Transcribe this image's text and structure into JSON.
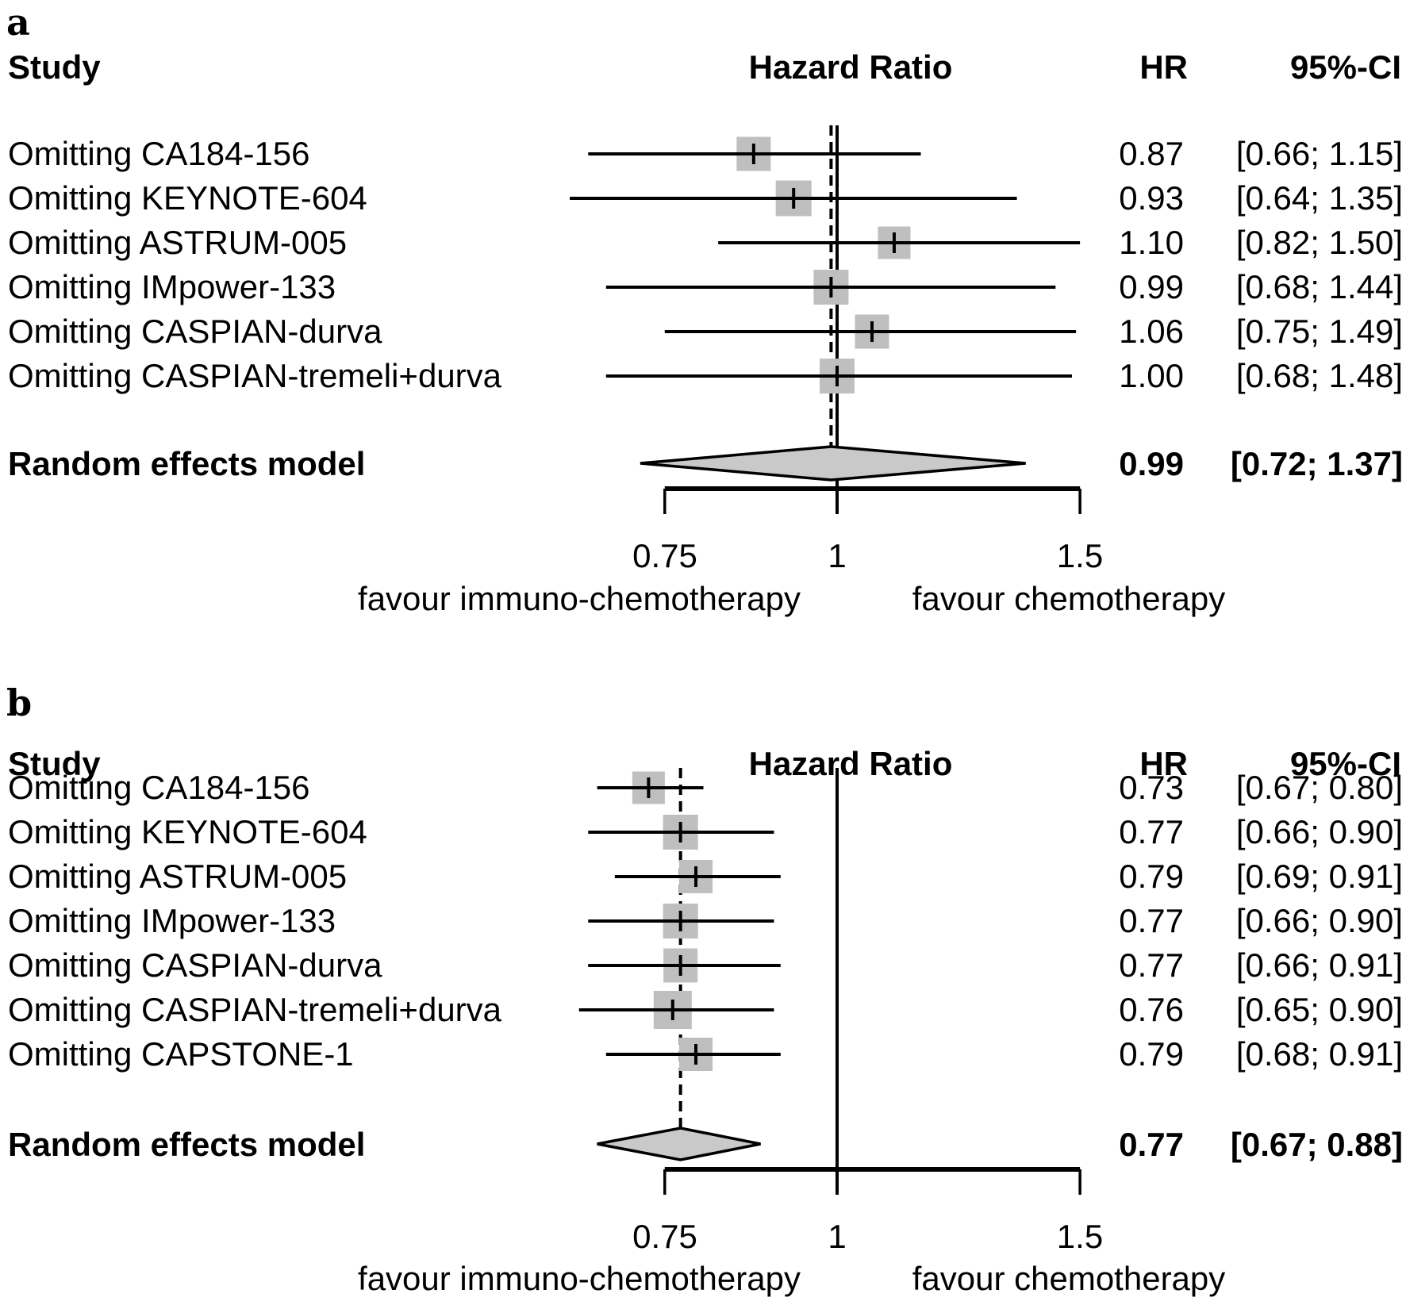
{
  "chart_data": [
    {
      "type": "scatter",
      "variant": "forest-plot",
      "panel_label": "a",
      "columns": {
        "study": "Study",
        "hazard_ratio": "Hazard Ratio",
        "hr": "HR",
        "ci": "95%-CI"
      },
      "xscale": "log",
      "axis": {
        "ticks": [
          "0.75",
          "1",
          "1.5"
        ],
        "tick_values": [
          0.75,
          1,
          1.5
        ],
        "reference_line": 1.0,
        "left_label": "favour immuno-chemotherapy",
        "right_label": "favour chemotherapy"
      },
      "rows": [
        {
          "label": "Omitting CA184-156",
          "hr": 0.87,
          "ci_low": 0.66,
          "ci_high": 1.15,
          "hr_text": "0.87",
          "ci_text": "[0.66; 1.15]"
        },
        {
          "label": "Omitting KEYNOTE-604",
          "hr": 0.93,
          "ci_low": 0.64,
          "ci_high": 1.35,
          "hr_text": "0.93",
          "ci_text": "[0.64; 1.35]"
        },
        {
          "label": "Omitting ASTRUM-005",
          "hr": 1.1,
          "ci_low": 0.82,
          "ci_high": 1.5,
          "hr_text": "1.10",
          "ci_text": "[0.82; 1.50]"
        },
        {
          "label": "Omitting IMpower-133",
          "hr": 0.99,
          "ci_low": 0.68,
          "ci_high": 1.44,
          "hr_text": "0.99",
          "ci_text": "[0.68; 1.44]"
        },
        {
          "label": "Omitting CASPIAN-durva",
          "hr": 1.06,
          "ci_low": 0.75,
          "ci_high": 1.49,
          "hr_text": "1.06",
          "ci_text": "[0.75; 1.49]"
        },
        {
          "label": "Omitting CASPIAN-tremeli+durva",
          "hr": 1.0,
          "ci_low": 0.68,
          "ci_high": 1.48,
          "hr_text": "1.00",
          "ci_text": "[0.68; 1.48]"
        }
      ],
      "summary": {
        "label": "Random effects model",
        "hr": 0.99,
        "ci_low": 0.72,
        "ci_high": 1.37,
        "hr_text": "0.99",
        "ci_text": "[0.72; 1.37]"
      },
      "colors": {
        "square": "#bfbfbf",
        "diamond": "#c9c9c9",
        "line": "#000000"
      }
    },
    {
      "type": "scatter",
      "variant": "forest-plot",
      "panel_label": "b",
      "columns": {
        "study": "Study",
        "hazard_ratio": "Hazard Ratio",
        "hr": "HR",
        "ci": "95%-CI"
      },
      "xscale": "log",
      "axis": {
        "ticks": [
          "0.75",
          "1",
          "1.5"
        ],
        "tick_values": [
          0.75,
          1,
          1.5
        ],
        "reference_line": 1.0,
        "left_label": "favour immuno-chemotherapy",
        "right_label": "favour chemotherapy"
      },
      "rows": [
        {
          "label": "Omitting CA184-156",
          "hr": 0.73,
          "ci_low": 0.67,
          "ci_high": 0.8,
          "hr_text": "0.73",
          "ci_text": "[0.67; 0.80]"
        },
        {
          "label": "Omitting KEYNOTE-604",
          "hr": 0.77,
          "ci_low": 0.66,
          "ci_high": 0.9,
          "hr_text": "0.77",
          "ci_text": "[0.66; 0.90]"
        },
        {
          "label": "Omitting ASTRUM-005",
          "hr": 0.79,
          "ci_low": 0.69,
          "ci_high": 0.91,
          "hr_text": "0.79",
          "ci_text": "[0.69; 0.91]"
        },
        {
          "label": "Omitting IMpower-133",
          "hr": 0.77,
          "ci_low": 0.66,
          "ci_high": 0.9,
          "hr_text": "0.77",
          "ci_text": "[0.66; 0.90]"
        },
        {
          "label": "Omitting CASPIAN-durva",
          "hr": 0.77,
          "ci_low": 0.66,
          "ci_high": 0.91,
          "hr_text": "0.77",
          "ci_text": "[0.66; 0.91]"
        },
        {
          "label": "Omitting CASPIAN-tremeli+durva",
          "hr": 0.76,
          "ci_low": 0.65,
          "ci_high": 0.9,
          "hr_text": "0.76",
          "ci_text": "[0.65; 0.90]"
        },
        {
          "label": "Omitting CAPSTONE-1",
          "hr": 0.79,
          "ci_low": 0.68,
          "ci_high": 0.91,
          "hr_text": "0.79",
          "ci_text": "[0.68; 0.91]"
        }
      ],
      "summary": {
        "label": "Random effects model",
        "hr": 0.77,
        "ci_low": 0.67,
        "ci_high": 0.88,
        "hr_text": "0.77",
        "ci_text": "[0.67; 0.88]"
      },
      "colors": {
        "square": "#bfbfbf",
        "diamond": "#c9c9c9",
        "line": "#000000"
      }
    }
  ]
}
